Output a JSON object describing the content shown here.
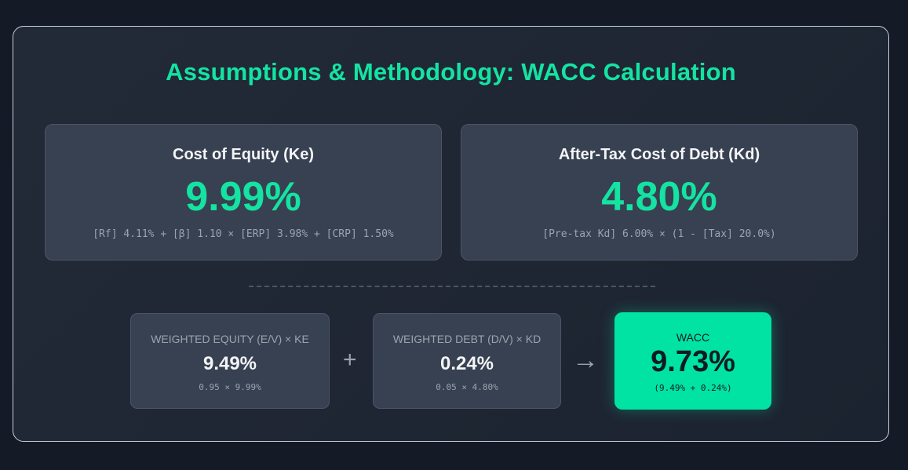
{
  "title": "Assumptions & Methodology: WACC Calculation",
  "colors": {
    "accent": "#14e3a2",
    "card": "#374151",
    "background": "#141a26"
  },
  "cost_of_equity": {
    "label": "Cost of Equity (Ke)",
    "value": "9.99%",
    "formula": "[Rf] 4.11% + [β] 1.10 × [ERP] 3.98% + [CRP] 1.50%"
  },
  "cost_of_debt": {
    "label": "After-Tax Cost of Debt (Kd)",
    "value": "4.80%",
    "formula": "[Pre-tax Kd] 6.00% × (1 - [Tax] 20.0%)"
  },
  "weighted_equity": {
    "label": "Weighted Equity (E/V) × Ke",
    "value": "9.49%",
    "formula": "0.95 × 9.99%"
  },
  "weighted_debt": {
    "label": "Weighted Debt (D/V) × Kd",
    "value": "0.24%",
    "formula": "0.05 × 4.80%"
  },
  "operators": {
    "plus": "+",
    "arrow": "→"
  },
  "wacc": {
    "label": "WACC",
    "value": "9.73%",
    "formula": "(9.49% + 0.24%)"
  }
}
